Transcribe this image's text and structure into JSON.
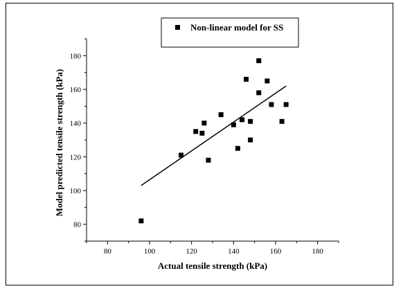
{
  "chart_data": {
    "type": "scatter",
    "title": "",
    "xlabel": "Actual tensile strength (kPa)",
    "ylabel": "Model predicted tensile strength (kPa)",
    "xlim": [
      70,
      190
    ],
    "ylim": [
      70,
      190
    ],
    "x_ticks": [
      80,
      100,
      120,
      140,
      160,
      180
    ],
    "y_ticks": [
      80,
      100,
      120,
      140,
      160,
      180
    ],
    "legend": {
      "position": "top-right",
      "entries": [
        "Non-linear model for SS"
      ]
    },
    "series": [
      {
        "name": "Non-linear model for SS",
        "marker": "square",
        "color": "#000000",
        "points": [
          {
            "x": 96,
            "y": 82
          },
          {
            "x": 115,
            "y": 121
          },
          {
            "x": 122,
            "y": 135
          },
          {
            "x": 125,
            "y": 134
          },
          {
            "x": 126,
            "y": 140
          },
          {
            "x": 128,
            "y": 118
          },
          {
            "x": 134,
            "y": 145
          },
          {
            "x": 140,
            "y": 139
          },
          {
            "x": 142,
            "y": 125
          },
          {
            "x": 144,
            "y": 142
          },
          {
            "x": 146,
            "y": 166
          },
          {
            "x": 148,
            "y": 130
          },
          {
            "x": 148,
            "y": 141
          },
          {
            "x": 152,
            "y": 177
          },
          {
            "x": 152,
            "y": 158
          },
          {
            "x": 156,
            "y": 165
          },
          {
            "x": 158,
            "y": 151
          },
          {
            "x": 163,
            "y": 141
          },
          {
            "x": 165,
            "y": 151
          }
        ]
      }
    ],
    "fit_line": {
      "x": [
        96,
        165
      ],
      "y": [
        103,
        162
      ],
      "color": "#000000"
    },
    "grid": false
  }
}
